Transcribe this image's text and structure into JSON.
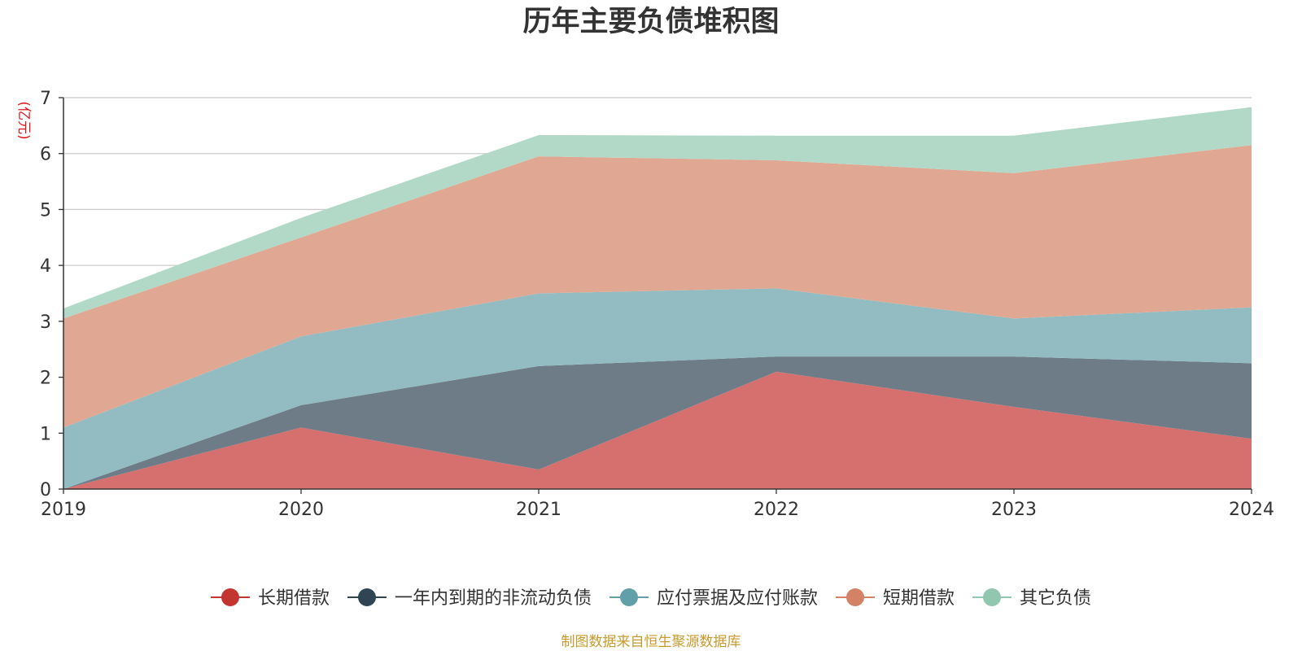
{
  "chart_data": {
    "type": "area",
    "stacked": true,
    "title": "历年主要负债堆积图",
    "unit_label": "(亿元)",
    "source_note": "制图数据来自恒生聚源数据库",
    "categories": [
      "2019",
      "2020",
      "2021",
      "2022",
      "2023",
      "2024"
    ],
    "ylim": [
      0,
      7
    ],
    "yticks": [
      0,
      1,
      2,
      3,
      4,
      5,
      6,
      7
    ],
    "grid": true,
    "legend_position": "bottom-center",
    "series": [
      {
        "name": "长期借款",
        "color": "#c23531",
        "fill": "#d6706e",
        "values": [
          0.0,
          1.1,
          0.35,
          2.1,
          1.47,
          0.9
        ]
      },
      {
        "name": "一年内到期的非流动负债",
        "color": "#2f4554",
        "fill": "#6e7c87",
        "values": [
          0.0,
          0.4,
          1.85,
          0.27,
          0.9,
          1.35
        ]
      },
      {
        "name": "应付票据及应付账款",
        "color": "#61a0a8",
        "fill": "#93bcc2",
        "values": [
          1.1,
          1.23,
          1.3,
          1.22,
          0.68,
          1.0
        ]
      },
      {
        "name": "短期借款",
        "color": "#d48265",
        "fill": "#e0a892",
        "values": [
          1.95,
          1.77,
          2.45,
          2.29,
          2.6,
          2.9
        ]
      },
      {
        "name": "其它负债",
        "color": "#91c7ae",
        "fill": "#b2d9c7",
        "values": [
          0.18,
          0.35,
          0.38,
          0.44,
          0.67,
          0.68
        ]
      }
    ]
  }
}
